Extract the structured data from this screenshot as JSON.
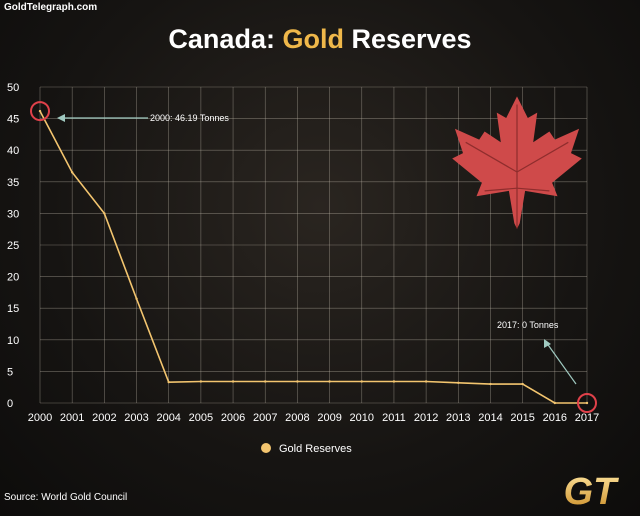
{
  "header": {
    "site": "GoldTelegraph.com",
    "title_part1": "Canada: ",
    "title_part2": "Gold",
    "title_part3": " Reserves"
  },
  "footer": {
    "source": "Source: World Gold Council",
    "logo_text": "GT"
  },
  "colors": {
    "line": "#f3c56f",
    "title_accent": "#f0b84a",
    "highlight_circle": "#e0414a",
    "arrow": "#9fc9c0",
    "grid": "#bdb6a8",
    "maple_leaf": "#cf4a4a"
  },
  "chart_data": {
    "type": "line",
    "title": "Canada: Gold Reserves",
    "categories": [
      "2000",
      "2001",
      "2002",
      "2003",
      "2004",
      "2005",
      "2006",
      "2007",
      "2008",
      "2009",
      "2010",
      "2011",
      "2012",
      "2013",
      "2014",
      "2015",
      "2016",
      "2017"
    ],
    "series": [
      {
        "name": "Gold Reserves",
        "values": [
          46.19,
          36.5,
          30.0,
          16.5,
          3.3,
          3.4,
          3.4,
          3.4,
          3.4,
          3.4,
          3.4,
          3.4,
          3.4,
          3.2,
          3.0,
          3.0,
          0,
          0
        ]
      }
    ],
    "ylim": [
      0,
      50
    ],
    "yticks": [
      0,
      5,
      10,
      15,
      20,
      25,
      30,
      35,
      40,
      45,
      50
    ],
    "grid": true,
    "legend": "bottom-center",
    "annotations": [
      {
        "label": "2000: 46.19 Tonnes",
        "x": "2000",
        "y": 46.19
      },
      {
        "label": "2017: 0 Tonnes",
        "x": "2017",
        "y": 0
      }
    ]
  }
}
